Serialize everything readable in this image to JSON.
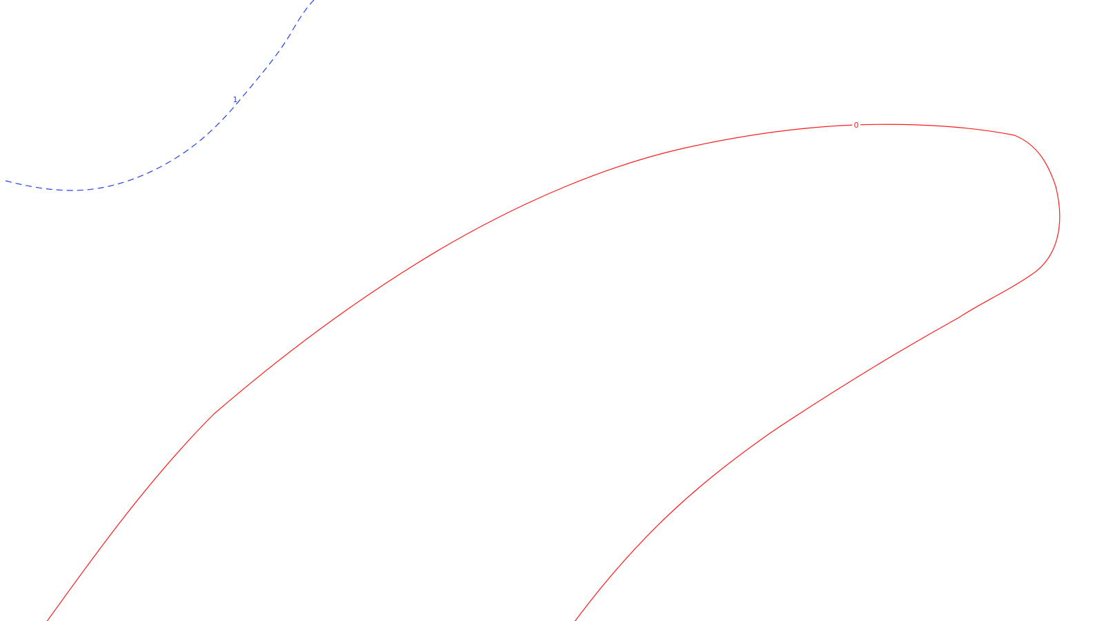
{
  "contours": [
    {
      "level_label": "1",
      "color": "#1f3ff0",
      "style": "dashed"
    },
    {
      "level_label": "0",
      "color": "#ff1a1a",
      "style": "solid"
    }
  ]
}
